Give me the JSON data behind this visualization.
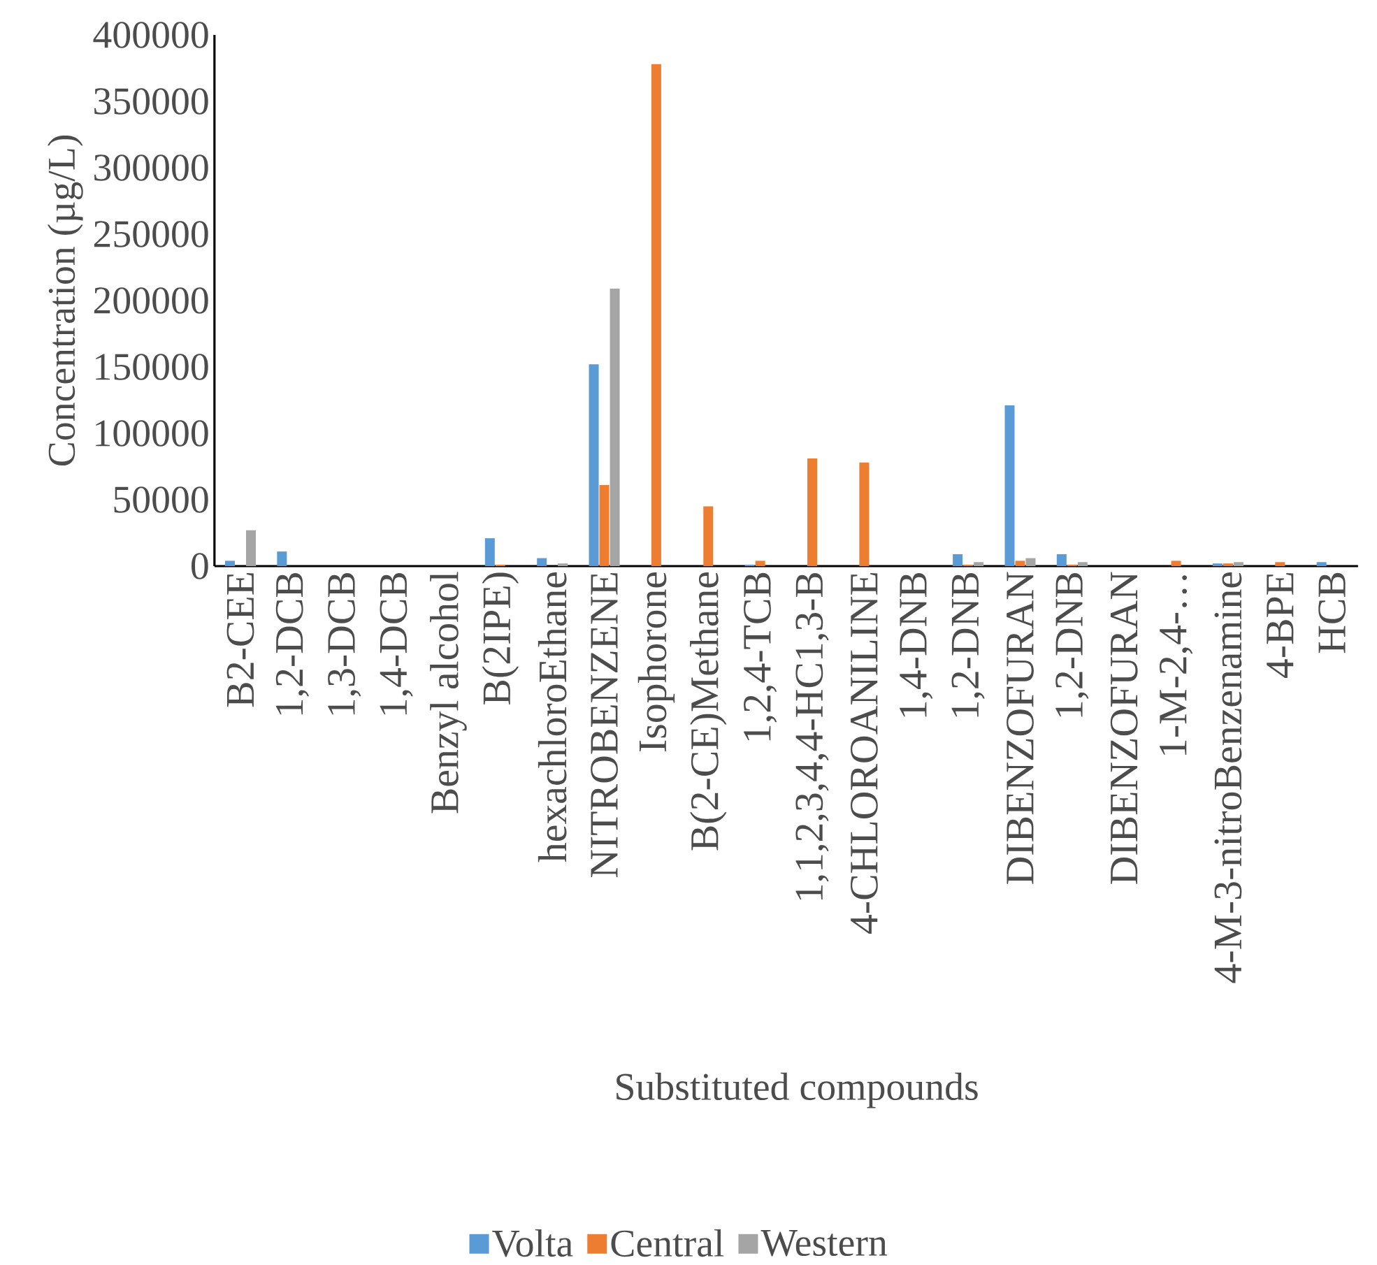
{
  "chart_data": {
    "type": "bar",
    "xlabel": "Substituted compounds",
    "ylabel": "Concentration (µg/L)",
    "categories": [
      "B2-CEE",
      "1,2-DCB",
      "1,3-DCB",
      "1,4-DCB",
      "Benzyl alcohol",
      "B(2IPE)",
      "hexachloroEthane",
      "NITROBENZENE",
      "Isophorone",
      "B(2-CE)Methane",
      "1,2,4-TCB",
      "1,1,2,3,4,4-HC1,3-B",
      "4-CHLOROANILINE",
      "1,4-DNB",
      "1,2-DNB",
      "DIBENZOFURAN",
      "1,2-DNB",
      "DIBENZOFURAN",
      "1-M-2,4-…",
      "4-M-3-nitroBenzenamine",
      "4-BPE",
      "HCB"
    ],
    "series": [
      {
        "name": "Volta",
        "color": "#5b9bd5",
        "values": [
          4000,
          11000,
          0,
          0,
          0,
          21000,
          6000,
          152000,
          0,
          0,
          1000,
          0,
          0,
          0,
          9000,
          121000,
          9000,
          0,
          0,
          2000,
          0,
          3000
        ]
      },
      {
        "name": "Central",
        "color": "#ed7d31",
        "values": [
          0,
          0,
          0,
          0,
          0,
          1000,
          0,
          61000,
          378000,
          45000,
          4000,
          81000,
          78000,
          0,
          1000,
          4000,
          1000,
          0,
          4000,
          2000,
          3000,
          0
        ]
      },
      {
        "name": "Western",
        "color": "#a5a5a5",
        "values": [
          27000,
          0,
          0,
          0,
          0,
          0,
          2000,
          209000,
          0,
          0,
          0,
          0,
          0,
          0,
          3000,
          6000,
          3000,
          0,
          0,
          3000,
          0,
          0
        ]
      }
    ],
    "ylim": [
      0,
      400000
    ],
    "yticks": [
      0,
      50000,
      100000,
      150000,
      200000,
      250000,
      300000,
      350000,
      400000
    ],
    "grid": false,
    "legend": "bottom"
  }
}
